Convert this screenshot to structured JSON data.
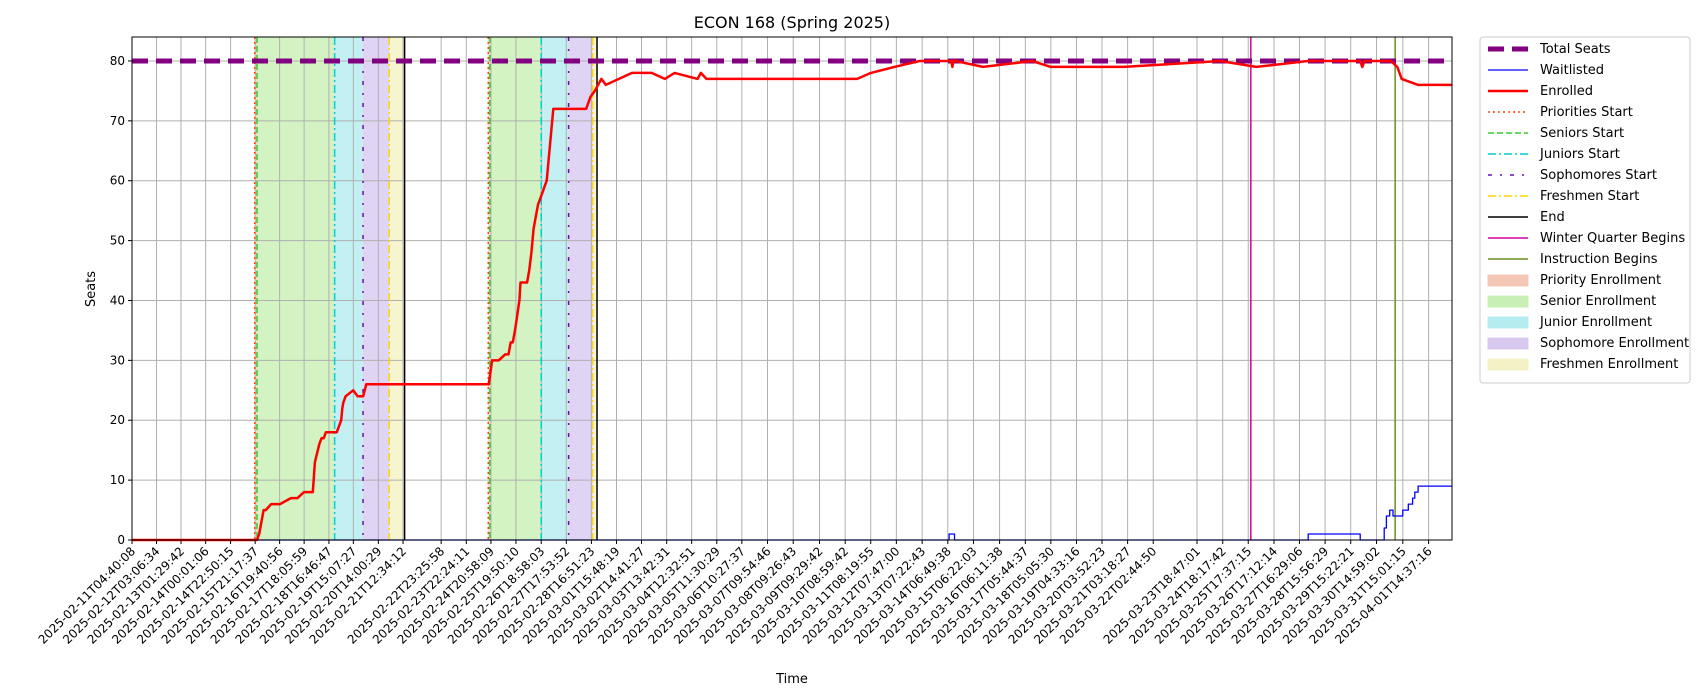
{
  "chart_data": {
    "type": "line",
    "title": "ECON 168 (Spring 2025)",
    "xlabel": "Time",
    "ylabel": "Seats",
    "ylim": [
      0,
      84
    ],
    "xlim": [
      "2025-02-11T04:40:08",
      "2025-04-02T12:00:00"
    ],
    "yticks": [
      0,
      10,
      20,
      30,
      40,
      50,
      60,
      70,
      80
    ],
    "grid": true,
    "legend_position": "outside-right",
    "xtick_labels": [
      "2025-02-11T04:40:08",
      "2025-02-12T03:06:34",
      "2025-02-13T01:29:42",
      "2025-02-14T00:01:06",
      "2025-02-14T22:50:15",
      "2025-02-15T21:17:37",
      "2025-02-16T19:40:56",
      "2025-02-17T18:05:59",
      "2025-02-18T16:46:47",
      "2025-02-19T15:07:27",
      "2025-02-20T14:00:29",
      "2025-02-21T12:34:12",
      "2025-02-22T23:25:58",
      "2025-02-23T22:24:11",
      "2025-02-24T20:58:09",
      "2025-02-25T19:50:10",
      "2025-02-26T18:58:03",
      "2025-02-27T17:53:52",
      "2025-02-28T16:51:23",
      "2025-03-01T15:48:19",
      "2025-03-02T14:41:27",
      "2025-03-03T13:42:31",
      "2025-03-04T12:32:51",
      "2025-03-05T11:30:29",
      "2025-03-06T10:27:37",
      "2025-03-07T09:54:46",
      "2025-03-08T09:26:43",
      "2025-03-09T09:29:42",
      "2025-03-10T08:59:42",
      "2025-03-11T08:19:55",
      "2025-03-12T07:47:00",
      "2025-03-13T07:22:43",
      "2025-03-14T06:49:38",
      "2025-03-15T06:22:03",
      "2025-03-16T06:11:38",
      "2025-03-17T05:44:37",
      "2025-03-18T05:05:30",
      "2025-03-19T04:33:16",
      "2025-03-20T03:52:23",
      "2025-03-21T03:18:27",
      "2025-03-22T02:44:50",
      "2025-03-23T18:47:01",
      "2025-03-24T18:17:42",
      "2025-03-25T17:37:15",
      "2025-03-26T17:12:14",
      "2025-03-27T16:29:06",
      "2025-03-28T15:56:29",
      "2025-03-29T15:22:21",
      "2025-03-30T14:59:02",
      "2025-03-31T15:01:15",
      "2025-04-01T14:37:16"
    ],
    "series": [
      {
        "name": "Total Seats",
        "color": "#800080",
        "style": "dashed-thick",
        "x": [
          "2025-02-11T04:40:08",
          "2025-04-02T12:00:00"
        ],
        "y": [
          80,
          80
        ]
      },
      {
        "name": "Waitlisted",
        "color": "#0000ff",
        "style": "solid-thin",
        "x": [
          "2025-02-11T04:40:08",
          "2025-03-14T08:00:00",
          "2025-03-14T08:00:00",
          "2025-03-14T13:00:00",
          "2025-03-14T13:00:00",
          "2025-03-28T00:30:00",
          "2025-03-28T00:30:00",
          "2025-03-30T00:00:00",
          "2025-03-30T00:00:00",
          "2025-03-30T22:00:00",
          "2025-03-30T22:00:00",
          "2025-03-31T00:00:00",
          "2025-03-31T00:00:00",
          "2025-03-31T03:00:00",
          "2025-03-31T03:00:00",
          "2025-03-31T06:00:00",
          "2025-03-31T06:00:00",
          "2025-03-31T09:00:00",
          "2025-03-31T09:00:00",
          "2025-03-31T12:00:00",
          "2025-03-31T12:00:00",
          "2025-03-31T15:00:00",
          "2025-03-31T15:00:00",
          "2025-03-31T20:00:00",
          "2025-03-31T20:00:00",
          "2025-04-01T00:00:00",
          "2025-04-01T00:00:00",
          "2025-04-01T02:00:00",
          "2025-04-01T02:00:00",
          "2025-04-01T05:00:00",
          "2025-04-01T05:00:00",
          "2025-04-01T07:00:00",
          "2025-04-01T07:00:00",
          "2025-04-01T09:00:00",
          "2025-04-01T09:00:00",
          "2025-04-02T12:00:00"
        ],
        "y": [
          0,
          0,
          1,
          1,
          0,
          0,
          1,
          1,
          0,
          0,
          2,
          2,
          4,
          4,
          5,
          5,
          4,
          4,
          4,
          4,
          4,
          4,
          5,
          5,
          6,
          6,
          7,
          7,
          8,
          8,
          9,
          9,
          9,
          9,
          9,
          9
        ]
      },
      {
        "name": "Enrolled",
        "color": "#ff0000",
        "style": "solid-thick",
        "x": [
          "2025-02-11T04:40:08",
          "2025-02-15T23:00:00",
          "2025-02-16T01:00:00",
          "2025-02-16T03:00:00",
          "2025-02-16T05:00:00",
          "2025-02-16T07:00:00",
          "2025-02-16T12:00:00",
          "2025-02-16T20:00:00",
          "2025-02-17T06:00:00",
          "2025-02-17T12:00:00",
          "2025-02-17T18:00:00",
          "2025-02-17T19:00:00",
          "2025-02-18T02:00:00",
          "2025-02-18T04:00:00",
          "2025-02-18T08:00:00",
          "2025-02-18T10:00:00",
          "2025-02-18T12:00:00",
          "2025-02-18T14:00:00",
          "2025-02-18T17:00:00",
          "2025-02-19T00:00:00",
          "2025-02-19T04:00:00",
          "2025-02-19T05:00:00",
          "2025-02-19T06:00:00",
          "2025-02-19T08:00:00",
          "2025-02-19T15:00:00",
          "2025-02-19T19:00:00",
          "2025-02-19T20:00:00",
          "2025-02-20T00:00:00",
          "2025-02-20T03:00:00",
          "2025-02-24T17:00:00",
          "2025-02-24T19:00:00",
          "2025-02-24T22:00:00",
          "2025-02-25T04:00:00",
          "2025-02-25T10:00:00",
          "2025-02-25T12:00:00",
          "2025-02-25T13:00:00",
          "2025-02-25T14:00:00",
          "2025-02-25T15:00:00",
          "2025-02-25T17:00:00",
          "2025-02-25T19:00:00",
          "2025-02-25T23:00:00",
          "2025-02-26T00:00:00",
          "2025-02-26T02:00:00",
          "2025-02-26T04:00:00",
          "2025-02-26T06:00:00",
          "2025-02-26T08:00:00",
          "2025-02-26T10:00:00",
          "2025-02-26T12:00:00",
          "2025-02-26T14:00:00",
          "2025-02-26T16:00:00",
          "2025-02-26T18:00:00",
          "2025-02-26T20:00:00",
          "2025-02-26T22:00:00",
          "2025-02-27T00:00:00",
          "2025-02-27T03:00:00",
          "2025-02-27T06:00:00",
          "2025-02-27T08:00:00",
          "2025-02-27T18:00:00",
          "2025-02-28T09:00:00",
          "2025-02-28T12:00:00",
          "2025-02-28T14:00:00",
          "2025-02-28T16:00:00",
          "2025-02-28T20:00:00",
          "2025-03-01T02:00:00",
          "2025-03-01T06:00:00",
          "2025-03-01T18:00:00",
          "2025-03-02T06:00:00",
          "2025-03-03T00:00:00",
          "2025-03-03T12:00:00",
          "2025-03-03T21:00:00",
          "2025-03-04T18:00:00",
          "2025-03-04T21:00:00",
          "2025-03-05T02:00:00",
          "2025-03-05T12:00:00",
          "2025-03-10T20:00:00",
          "2025-03-11T08:30:00",
          "2025-03-12T06:00:00",
          "2025-03-13T05:00:00",
          "2025-03-14T10:00:00",
          "2025-03-14T11:00:00",
          "2025-03-14T12:00:00",
          "2025-03-14T14:00:00",
          "2025-03-15T15:00:00",
          "2025-03-17T12:00:00",
          "2025-03-18T05:00:00",
          "2025-03-21T00:00:00",
          "2025-03-24T16:00:00",
          "2025-03-26T01:00:00",
          "2025-03-28T00:00:00",
          "2025-03-30T00:00:00",
          "2025-03-30T02:00:00",
          "2025-03-30T04:00:00",
          "2025-03-31T00:00:00",
          "2025-03-31T04:00:00",
          "2025-03-31T10:00:00",
          "2025-03-31T14:00:00",
          "2025-04-01T05:00:00",
          "2025-04-02T12:00:00"
        ],
        "y": [
          0,
          0,
          1,
          3,
          5,
          5,
          6,
          6,
          7,
          7,
          8,
          8,
          8,
          13,
          16,
          17,
          17,
          18,
          18,
          18,
          20,
          22,
          23,
          24,
          25,
          24,
          24,
          24,
          26,
          26,
          26,
          30,
          30,
          31,
          31,
          31,
          32,
          33,
          33,
          35,
          40,
          43,
          43,
          43,
          43,
          45,
          48,
          52,
          54,
          56,
          57,
          58,
          59,
          60,
          66,
          72,
          72,
          72,
          72,
          72,
          73,
          74,
          75,
          77,
          76,
          77,
          78,
          78,
          77,
          78,
          77,
          78,
          77,
          77,
          77,
          78,
          79,
          80,
          80,
          79,
          80,
          80,
          79,
          80,
          79,
          79,
          80,
          79,
          80,
          80,
          79,
          80,
          80,
          80,
          79,
          77,
          76,
          76
        ]
      }
    ],
    "phase_lines": [
      {
        "name": "Priorities Start",
        "color": "#ff4500",
        "style": "dotted",
        "x": [
          "2025-02-15T21:00:00",
          "2025-02-24T18:30:00"
        ]
      },
      {
        "name": "Seniors Start",
        "color": "#32cd32",
        "style": "dashed",
        "x": [
          "2025-02-15T23:00:00",
          "2025-02-24T20:00:00"
        ]
      },
      {
        "name": "Juniors Start",
        "color": "#00ced1",
        "style": "dashdot",
        "x": [
          "2025-02-18T22:00:00",
          "2025-02-26T19:00:00"
        ]
      },
      {
        "name": "Sophomores Start",
        "color": "#6a0dad",
        "style": "loosely-dashdot",
        "x": [
          "2025-02-20T00:00:00",
          "2025-02-27T20:00:00"
        ]
      },
      {
        "name": "Freshmen Start",
        "color": "#ffd700",
        "style": "dashdot",
        "x": [
          "2025-02-21T00:00:00",
          "2025-02-28T18:00:00"
        ]
      },
      {
        "name": "End",
        "color": "#000000",
        "style": "solid",
        "x": [
          "2025-02-21T14:00:00",
          "2025-02-28T22:00:00"
        ]
      },
      {
        "name": "Winter Quarter Begins",
        "color": "#d4009b",
        "style": "solid",
        "x": [
          "2025-03-25T20:00:00"
        ]
      },
      {
        "name": "Instruction Begins",
        "color": "#6b8e23",
        "style": "solid",
        "x": [
          "2025-03-31T08:00:00"
        ]
      }
    ],
    "phase_bands": [
      {
        "name": "Priority Enrollment",
        "color": "#f4c7b4",
        "ranges": [
          [
            "2025-02-15T21:00:00",
            "2025-02-15T23:00:00"
          ],
          [
            "2025-02-24T18:30:00",
            "2025-02-24T20:00:00"
          ]
        ]
      },
      {
        "name": "Senior Enrollment",
        "color": "#c8f0b4",
        "ranges": [
          [
            "2025-02-15T23:00:00",
            "2025-02-18T22:00:00"
          ],
          [
            "2025-02-24T20:00:00",
            "2025-02-26T19:00:00"
          ]
        ]
      },
      {
        "name": "Junior Enrollment",
        "color": "#b4ecf0",
        "ranges": [
          [
            "2025-02-18T22:00:00",
            "2025-02-20T00:00:00"
          ],
          [
            "2025-02-26T19:00:00",
            "2025-02-27T20:00:00"
          ]
        ]
      },
      {
        "name": "Sophomore Enrollment",
        "color": "#d8c8f0",
        "ranges": [
          [
            "2025-02-20T00:00:00",
            "2025-02-21T00:00:00"
          ],
          [
            "2025-02-27T20:00:00",
            "2025-02-28T18:00:00"
          ]
        ]
      },
      {
        "name": "Freshmen Enrollment",
        "color": "#f4f2c4",
        "ranges": [
          [
            "2025-02-21T00:00:00",
            "2025-02-21T14:00:00"
          ],
          [
            "2025-02-28T18:00:00",
            "2025-02-28T22:00:00"
          ]
        ]
      }
    ]
  }
}
